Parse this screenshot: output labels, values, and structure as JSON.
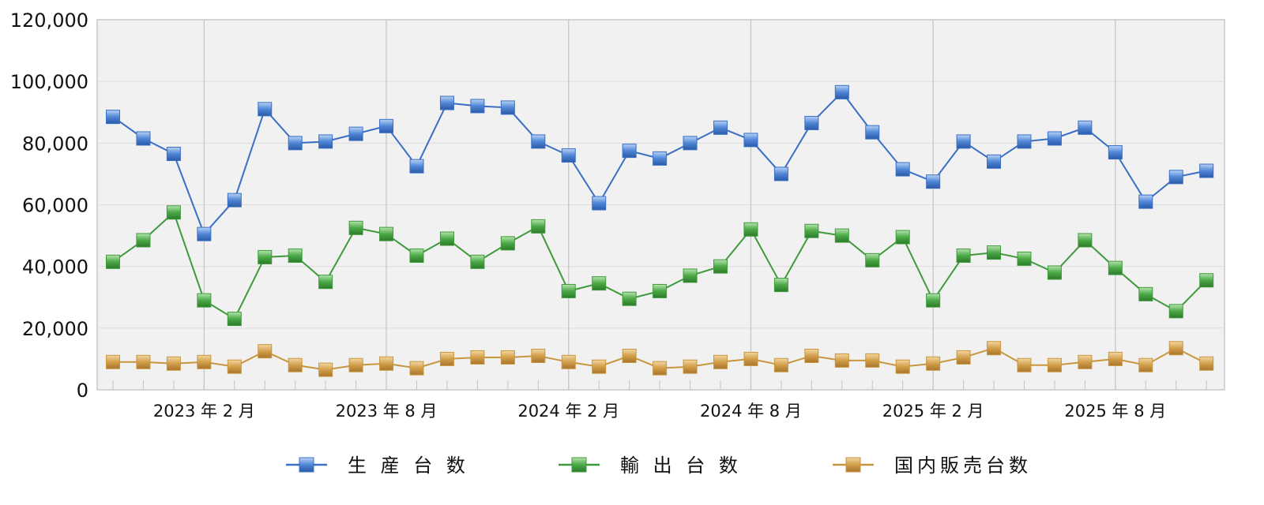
{
  "chart_data": {
    "type": "line",
    "x": [
      "2022年11月",
      "2022年12月",
      "2023年1月",
      "2023年2月",
      "2023年3月",
      "2023年4月",
      "2023年5月",
      "2023年6月",
      "2023年7月",
      "2023年8月",
      "2023年9月",
      "2023年10月",
      "2023年11月",
      "2023年12月",
      "2024年1月",
      "2024年2月",
      "2024年3月",
      "2024年4月",
      "2024年5月",
      "2024年6月",
      "2024年7月",
      "2024年8月",
      "2024年9月",
      "2024年10月",
      "2024年11月",
      "2024年12月",
      "2025年1月",
      "2025年2月",
      "2025年3月",
      "2025年4月",
      "2025年5月",
      "2025年6月",
      "2025年7月",
      "2025年8月",
      "2025年9月",
      "2025年10月",
      "2025年11月"
    ],
    "xtick_labels": [
      "2023 年 2 月",
      "2023 年 8 月",
      "2024 年 2 月",
      "2024 年 8 月",
      "2025 年 2 月",
      "2025 年 8 月"
    ],
    "ylim": [
      0,
      120000
    ],
    "ytick_labels": [
      "0",
      "20,000",
      "40,000",
      "60,000",
      "80,000",
      "100,000",
      "120,000"
    ],
    "grid": true,
    "legend_position": "bottom",
    "series": [
      {
        "name": "生 産 台 数",
        "color": "#3a6fc4",
        "values": [
          88500,
          81500,
          76500,
          50500,
          61500,
          91000,
          80000,
          80500,
          83000,
          85500,
          72500,
          93000,
          92000,
          91500,
          80500,
          76000,
          60500,
          77500,
          75000,
          80000,
          85000,
          81000,
          70000,
          86500,
          96500,
          83500,
          71500,
          67500,
          80500,
          74000,
          80500,
          81500,
          85000,
          77000,
          61000,
          69000,
          71000
        ]
      },
      {
        "name": "輸 出 台 数",
        "color": "#3f9a3b",
        "values": [
          41500,
          48500,
          57500,
          29000,
          23000,
          43000,
          43500,
          35000,
          52500,
          50500,
          43500,
          49000,
          41500,
          47500,
          53000,
          32000,
          34500,
          29500,
          32000,
          37000,
          40000,
          52000,
          34000,
          51500,
          50000,
          42000,
          49500,
          29000,
          43500,
          44500,
          42500,
          38000,
          48500,
          39500,
          31000,
          25500,
          35500
        ]
      },
      {
        "name": "国内販売台数",
        "color": "#c8963e",
        "values": [
          9000,
          9000,
          8500,
          9000,
          7500,
          12500,
          8000,
          6500,
          8000,
          8500,
          7000,
          10000,
          10500,
          10500,
          11000,
          9000,
          7500,
          11000,
          7000,
          7500,
          9000,
          10000,
          8000,
          11000,
          9500,
          9500,
          7500,
          8500,
          10500,
          13500,
          8000,
          8000,
          9000,
          10000,
          8000,
          13500,
          8500
        ]
      }
    ]
  }
}
